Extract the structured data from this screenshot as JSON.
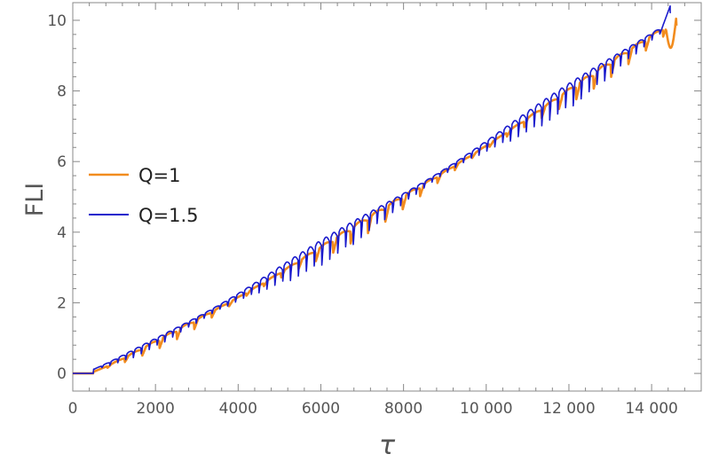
{
  "chart_data": {
    "type": "line",
    "xlabel": "τ",
    "ylabel": "FLI",
    "xlim": [
      0,
      15200
    ],
    "ylim": [
      -0.5,
      10.5
    ],
    "x_ticks": [
      0,
      2000,
      4000,
      6000,
      8000,
      10000,
      12000,
      14000
    ],
    "x_tick_labels": [
      "0",
      "2000",
      "4000",
      "6000",
      "8000",
      "10 000",
      "12 000",
      "14 000"
    ],
    "y_ticks": [
      0,
      2,
      4,
      6,
      8,
      10
    ],
    "y_tick_labels": [
      "0",
      "2",
      "4",
      "6",
      "8",
      "10"
    ],
    "legend_position": "left",
    "series": [
      {
        "name": "Q=1",
        "color": "#f28c1e",
        "x_end": 14600,
        "final_value": 9.85,
        "oscillation_period": 420,
        "dip_depth": 0.35
      },
      {
        "name": "Q=1.5",
        "color": "#1a1acc",
        "x_end": 14450,
        "final_value": 10.2,
        "oscillation_period": 190,
        "dip_depth": 0.55
      }
    ]
  }
}
